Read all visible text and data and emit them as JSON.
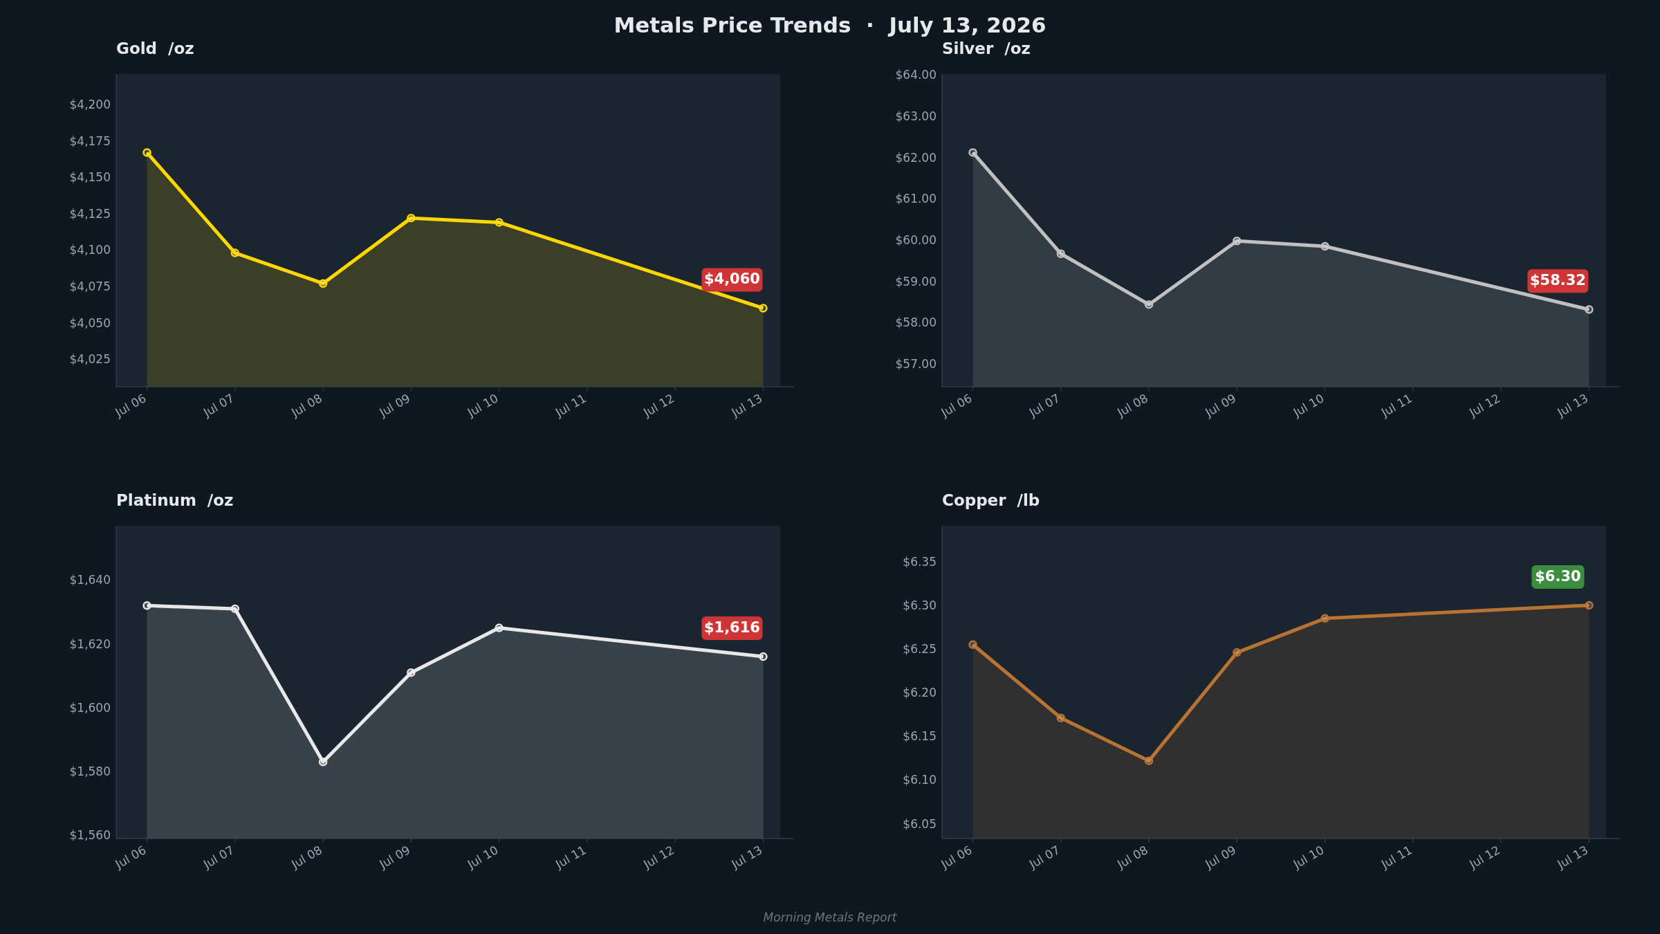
{
  "chart_data": [
    {
      "type": "area",
      "title": "Gold  /oz",
      "x": [
        "2026-07-06",
        "2026-07-07",
        "2026-07-08",
        "2026-07-09",
        "2026-07-10",
        "2026-07-13"
      ],
      "series": [
        {
          "color": "#ffd700",
          "values": [
            4167,
            4098,
            4077,
            4122,
            4119,
            4060
          ],
          "value_labels": [
            null,
            null,
            null,
            null,
            null,
            "$4,060"
          ]
        }
      ],
      "xlim": [
        "2026-07-05T15:36",
        "2026-07-13T08:24"
      ],
      "xticks": [
        {
          "value": "2026-07-06",
          "label": "Jul 06"
        },
        {
          "value": "2026-07-07",
          "label": "Jul 07"
        },
        {
          "value": "2026-07-08",
          "label": "Jul 08"
        },
        {
          "value": "2026-07-09",
          "label": "Jul 09"
        },
        {
          "value": "2026-07-10",
          "label": "Jul 10"
        },
        {
          "value": "2026-07-11",
          "label": "Jul 11"
        },
        {
          "value": "2026-07-12",
          "label": "Jul 12"
        },
        {
          "value": "2026-07-13",
          "label": "Jul 13"
        }
      ],
      "ylim": [
        4006,
        4221
      ],
      "yticks": [
        {
          "value": 4025,
          "label": "$4,025"
        },
        {
          "value": 4050,
          "label": "$4,050"
        },
        {
          "value": 4075,
          "label": "$4,075"
        },
        {
          "value": 4100,
          "label": "$4,100"
        },
        {
          "value": 4125,
          "label": "$4,125"
        },
        {
          "value": 4150,
          "label": "$4,150"
        },
        {
          "value": 4175,
          "label": "$4,175"
        },
        {
          "value": 4200,
          "label": "$4,200"
        }
      ],
      "marker": "circle",
      "grid": false,
      "legend": false,
      "annotations": [
        "Metals Price Trends  ·  July 13, 2026"
      ]
    },
    {
      "type": "area",
      "title": "Silver  /oz",
      "x": [
        "2026-07-06",
        "2026-07-07",
        "2026-07-08",
        "2026-07-09",
        "2026-07-10",
        "2026-07-13"
      ],
      "series": [
        {
          "color": "#c0c0c0",
          "values": [
            62.12,
            59.67,
            58.44,
            59.98,
            59.85,
            58.32
          ],
          "value_labels": [
            null,
            null,
            null,
            null,
            null,
            "$58.32"
          ]
        }
      ],
      "xlim": [
        "2026-07-05T15:36",
        "2026-07-13T08:24"
      ],
      "xticks": [
        {
          "value": "2026-07-06",
          "label": "Jul 06"
        },
        {
          "value": "2026-07-07",
          "label": "Jul 07"
        },
        {
          "value": "2026-07-08",
          "label": "Jul 08"
        },
        {
          "value": "2026-07-09",
          "label": "Jul 09"
        },
        {
          "value": "2026-07-10",
          "label": "Jul 10"
        },
        {
          "value": "2026-07-11",
          "label": "Jul 11"
        },
        {
          "value": "2026-07-12",
          "label": "Jul 12"
        },
        {
          "value": "2026-07-13",
          "label": "Jul 13"
        }
      ],
      "ylim": [
        56.45,
        64.02
      ],
      "yticks": [
        {
          "value": 57,
          "label": "$57.00"
        },
        {
          "value": 58,
          "label": "$58.00"
        },
        {
          "value": 59,
          "label": "$59.00"
        },
        {
          "value": 60,
          "label": "$60.00"
        },
        {
          "value": 61,
          "label": "$61.00"
        },
        {
          "value": 62,
          "label": "$62.00"
        },
        {
          "value": 63,
          "label": "$63.00"
        },
        {
          "value": 64,
          "label": "$64.00"
        }
      ],
      "marker": "circle",
      "grid": false,
      "legend": false
    },
    {
      "type": "area",
      "title": "Platinum  /oz",
      "x": [
        "2026-07-06",
        "2026-07-07",
        "2026-07-08",
        "2026-07-09",
        "2026-07-10",
        "2026-07-13"
      ],
      "series": [
        {
          "color": "#e8e8e8",
          "values": [
            1632,
            1631,
            1583,
            1611,
            1625,
            1616
          ],
          "value_labels": [
            null,
            null,
            null,
            null,
            null,
            "$1,616"
          ]
        }
      ],
      "xlim": [
        "2026-07-05T15:36",
        "2026-07-13T08:24"
      ],
      "xticks": [
        {
          "value": "2026-07-06",
          "label": "Jul 06"
        },
        {
          "value": "2026-07-07",
          "label": "Jul 07"
        },
        {
          "value": "2026-07-08",
          "label": "Jul 08"
        },
        {
          "value": "2026-07-09",
          "label": "Jul 09"
        },
        {
          "value": "2026-07-10",
          "label": "Jul 10"
        },
        {
          "value": "2026-07-11",
          "label": "Jul 11"
        },
        {
          "value": "2026-07-12",
          "label": "Jul 12"
        },
        {
          "value": "2026-07-13",
          "label": "Jul 13"
        }
      ],
      "ylim": [
        1559,
        1657
      ],
      "yticks": [
        {
          "value": 1560,
          "label": "$1,560"
        },
        {
          "value": 1580,
          "label": "$1,580"
        },
        {
          "value": 1600,
          "label": "$1,600"
        },
        {
          "value": 1620,
          "label": "$1,620"
        },
        {
          "value": 1640,
          "label": "$1,640"
        }
      ],
      "marker": "circle",
      "grid": false,
      "legend": false
    },
    {
      "type": "area",
      "title": "Copper  /lb",
      "x": [
        "2026-07-06",
        "2026-07-07",
        "2026-07-08",
        "2026-07-09",
        "2026-07-10",
        "2026-07-13"
      ],
      "series": [
        {
          "color": "#b87333",
          "values": [
            6.255,
            6.171,
            6.122,
            6.246,
            6.285,
            6.3
          ],
          "value_labels": [
            null,
            null,
            null,
            null,
            null,
            "$6.30"
          ]
        }
      ],
      "xlim": [
        "2026-07-05T15:36",
        "2026-07-13T08:24"
      ],
      "xticks": [
        {
          "value": "2026-07-06",
          "label": "Jul 06"
        },
        {
          "value": "2026-07-07",
          "label": "Jul 07"
        },
        {
          "value": "2026-07-08",
          "label": "Jul 08"
        },
        {
          "value": "2026-07-09",
          "label": "Jul 09"
        },
        {
          "value": "2026-07-10",
          "label": "Jul 10"
        },
        {
          "value": "2026-07-11",
          "label": "Jul 11"
        },
        {
          "value": "2026-07-12",
          "label": "Jul 12"
        },
        {
          "value": "2026-07-13",
          "label": "Jul 13"
        }
      ],
      "ylim": [
        6.033,
        6.391
      ],
      "yticks": [
        {
          "value": 6.05,
          "label": "$6.05"
        },
        {
          "value": 6.1,
          "label": "$6.10"
        },
        {
          "value": 6.15,
          "label": "$6.15"
        },
        {
          "value": 6.2,
          "label": "$6.20"
        },
        {
          "value": 6.25,
          "label": "$6.25"
        },
        {
          "value": 6.3,
          "label": "$6.30"
        },
        {
          "value": 6.35,
          "label": "$6.35"
        }
      ],
      "marker": "circle",
      "grid": false,
      "legend": false,
      "annotations": [
        "Morning Metals Report"
      ]
    }
  ]
}
